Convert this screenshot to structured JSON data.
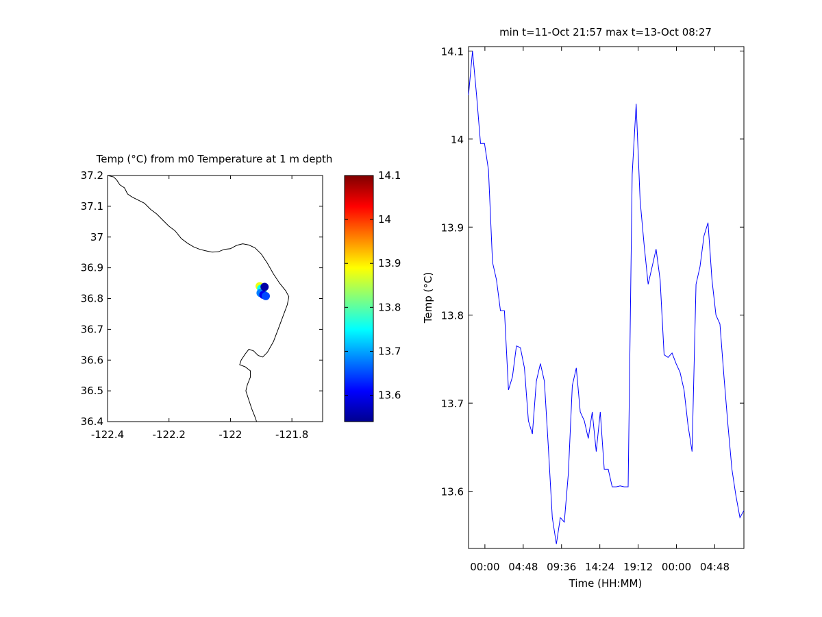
{
  "colors": {
    "line": "#0000ff",
    "coast": "#000000",
    "axes": "#000000",
    "background": "#ffffff"
  },
  "chart_data": [
    {
      "type": "scatter",
      "title": "Temp (°C) from m0 Temperature at 1 m depth",
      "xlim": [
        -122.4,
        -121.7
      ],
      "ylim": [
        36.4,
        37.2
      ],
      "xticks": [
        -122.4,
        -122.2,
        -122,
        -121.8
      ],
      "xtick_labels": [
        "-122.4",
        "-122.2",
        "-122",
        "-121.8"
      ],
      "yticks": [
        36.4,
        36.5,
        36.6,
        36.7,
        36.8,
        36.9,
        37,
        37.1,
        37.2
      ],
      "ytick_labels": [
        "36.4",
        "36.5",
        "36.6",
        "36.7",
        "36.8",
        "36.9",
        "37",
        "37.1",
        "37.2"
      ],
      "colorbar": {
        "colormap": "jet",
        "clim": [
          13.54,
          14.1
        ],
        "ticks": [
          13.6,
          13.7,
          13.8,
          13.9,
          14,
          14.1
        ],
        "tick_labels": [
          "13.6",
          "13.7",
          "13.8",
          "13.9",
          "14",
          "14.1"
        ]
      },
      "points": [
        {
          "lon": -121.905,
          "lat": 36.84,
          "temp": 13.88
        },
        {
          "lon": -121.9,
          "lat": 36.832,
          "temp": 13.75
        },
        {
          "lon": -121.895,
          "lat": 36.825,
          "temp": 13.8
        },
        {
          "lon": -121.902,
          "lat": 36.818,
          "temp": 13.68
        },
        {
          "lon": -121.893,
          "lat": 36.812,
          "temp": 13.6
        },
        {
          "lon": -121.885,
          "lat": 36.808,
          "temp": 13.65
        },
        {
          "lon": -121.889,
          "lat": 36.838,
          "temp": 13.56
        }
      ],
      "coastline": [
        [
          -122.4,
          37.2
        ],
        [
          -122.38,
          37.195
        ],
        [
          -122.37,
          37.185
        ],
        [
          -122.36,
          37.17
        ],
        [
          -122.345,
          37.16
        ],
        [
          -122.335,
          37.14
        ],
        [
          -122.32,
          37.13
        ],
        [
          -122.3,
          37.12
        ],
        [
          -122.28,
          37.11
        ],
        [
          -122.26,
          37.09
        ],
        [
          -122.24,
          37.075
        ],
        [
          -122.22,
          37.055
        ],
        [
          -122.2,
          37.035
        ],
        [
          -122.18,
          37.02
        ],
        [
          -122.16,
          36.995
        ],
        [
          -122.14,
          36.98
        ],
        [
          -122.12,
          36.968
        ],
        [
          -122.1,
          36.96
        ],
        [
          -122.08,
          36.955
        ],
        [
          -122.06,
          36.951
        ],
        [
          -122.04,
          36.952
        ],
        [
          -122.02,
          36.96
        ],
        [
          -122.0,
          36.962
        ],
        [
          -121.98,
          36.973
        ],
        [
          -121.96,
          36.978
        ],
        [
          -121.94,
          36.974
        ],
        [
          -121.92,
          36.965
        ],
        [
          -121.9,
          36.945
        ],
        [
          -121.88,
          36.915
        ],
        [
          -121.86,
          36.88
        ],
        [
          -121.84,
          36.85
        ],
        [
          -121.82,
          36.825
        ],
        [
          -121.81,
          36.806
        ],
        [
          -121.815,
          36.78
        ],
        [
          -121.83,
          36.74
        ],
        [
          -121.845,
          36.7
        ],
        [
          -121.86,
          36.66
        ],
        [
          -121.88,
          36.625
        ],
        [
          -121.895,
          36.61
        ],
        [
          -121.91,
          36.615
        ],
        [
          -121.925,
          36.63
        ],
        [
          -121.94,
          36.635
        ],
        [
          -121.952,
          36.62
        ],
        [
          -121.965,
          36.6
        ],
        [
          -121.97,
          36.585
        ],
        [
          -121.952,
          36.578
        ],
        [
          -121.935,
          36.565
        ],
        [
          -121.935,
          36.545
        ],
        [
          -121.945,
          36.52
        ],
        [
          -121.95,
          36.5
        ],
        [
          -121.94,
          36.47
        ],
        [
          -121.93,
          36.44
        ],
        [
          -121.92,
          36.415
        ],
        [
          -121.915,
          36.4
        ]
      ]
    },
    {
      "type": "line",
      "title": "min t=11-Oct 21:57 max t=13-Oct 08:27",
      "xlabel": "Time (HH:MM)",
      "ylabel": "Temp (°C)",
      "xlim_hours": [
        21.95,
        56.45
      ],
      "ylim": [
        13.535,
        14.105
      ],
      "xticks_hours": [
        24.0,
        28.8,
        33.6,
        38.4,
        43.2,
        48.0,
        52.8
      ],
      "xtick_labels": [
        "00:00",
        "04:48",
        "09:36",
        "14:24",
        "19:12",
        "00:00",
        "04:48"
      ],
      "yticks": [
        13.6,
        13.7,
        13.8,
        13.9,
        14,
        14.1
      ],
      "ytick_labels": [
        "13.6",
        "13.7",
        "13.8",
        "13.9",
        "14",
        "14.1"
      ],
      "x_hours": [
        21.95,
        22.45,
        22.95,
        23.45,
        23.95,
        24.45,
        24.95,
        25.45,
        25.95,
        26.45,
        26.95,
        27.45,
        27.95,
        28.45,
        28.95,
        29.45,
        29.95,
        30.45,
        30.95,
        31.45,
        31.95,
        32.45,
        32.95,
        33.45,
        33.95,
        34.45,
        34.95,
        35.45,
        35.95,
        36.45,
        36.95,
        37.45,
        37.95,
        38.45,
        38.95,
        39.45,
        39.95,
        40.45,
        40.95,
        41.45,
        41.95,
        42.45,
        42.95,
        43.45,
        43.95,
        44.45,
        44.95,
        45.45,
        45.95,
        46.45,
        46.95,
        47.45,
        47.95,
        48.45,
        48.95,
        49.45,
        49.95,
        50.45,
        50.95,
        51.45,
        51.95,
        52.45,
        52.95,
        53.45,
        53.95,
        54.45,
        54.95,
        55.45,
        55.95,
        56.45
      ],
      "values": [
        14.05,
        14.1,
        14.05,
        13.995,
        13.995,
        13.965,
        13.86,
        13.84,
        13.805,
        13.805,
        13.715,
        13.73,
        13.765,
        13.763,
        13.74,
        13.68,
        13.665,
        13.725,
        13.745,
        13.725,
        13.65,
        13.57,
        13.54,
        13.57,
        13.565,
        13.62,
        13.72,
        13.74,
        13.69,
        13.68,
        13.66,
        13.69,
        13.645,
        13.69,
        13.625,
        13.625,
        13.605,
        13.605,
        13.606,
        13.605,
        13.605,
        13.96,
        14.04,
        13.93,
        13.88,
        13.835,
        13.855,
        13.875,
        13.84,
        13.755,
        13.752,
        13.757,
        13.745,
        13.735,
        13.715,
        13.675,
        13.645,
        13.835,
        13.855,
        13.89,
        13.905,
        13.84,
        13.8,
        13.79,
        13.73,
        13.675,
        13.625,
        13.595,
        13.57,
        13.578
      ]
    }
  ]
}
